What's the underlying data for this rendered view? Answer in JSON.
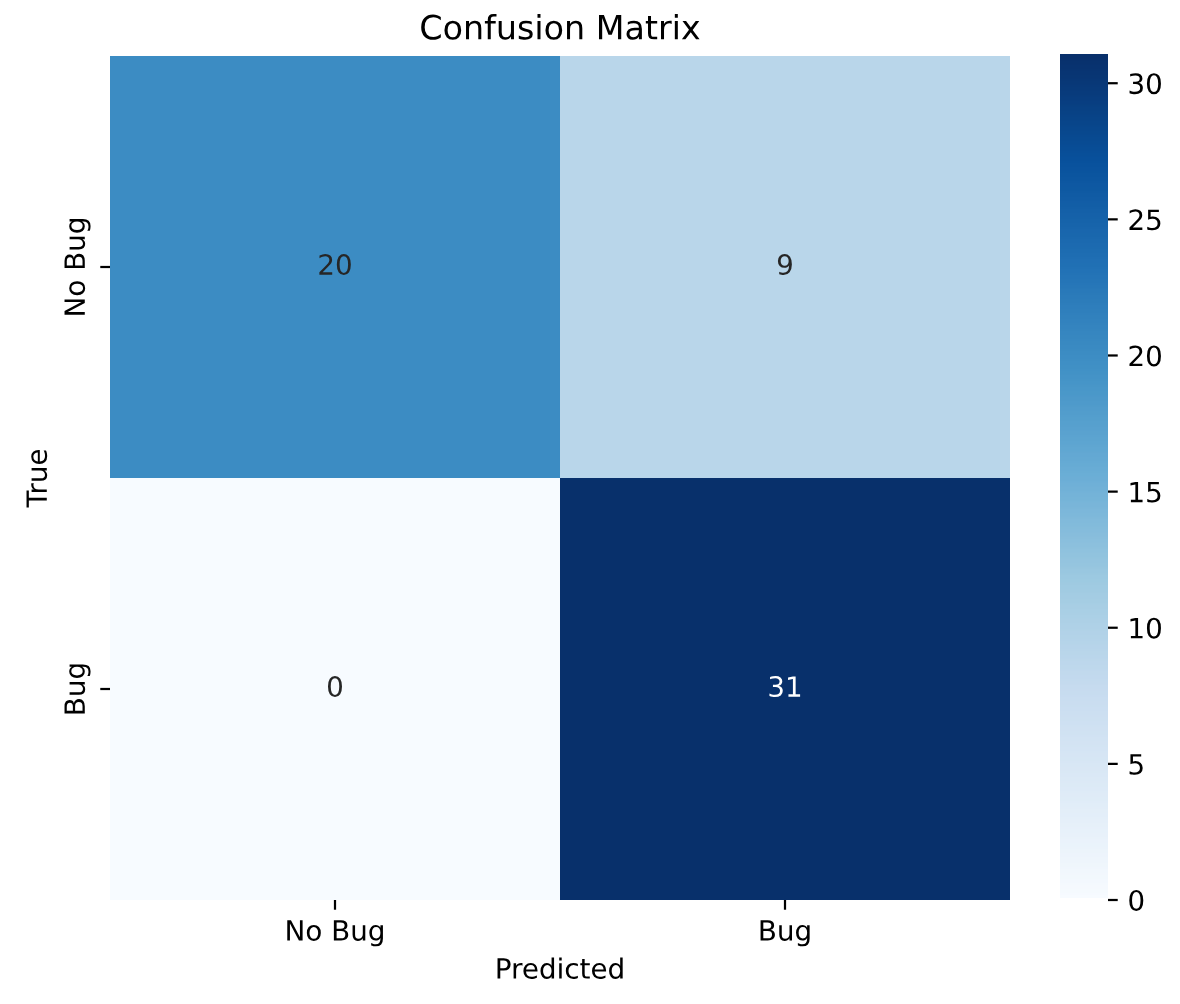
{
  "chart_data": {
    "type": "heatmap",
    "title": "Confusion Matrix",
    "xlabel": "Predicted",
    "ylabel": "True",
    "categories": [
      "No Bug",
      "Bug"
    ],
    "y_categories": [
      "No Bug",
      "Bug"
    ],
    "cells": [
      [
        20,
        9
      ],
      [
        0,
        31
      ]
    ],
    "clim": [
      0,
      31
    ],
    "cticks": [
      0,
      5,
      10,
      15,
      20,
      25,
      30
    ],
    "data_labels": true
  }
}
